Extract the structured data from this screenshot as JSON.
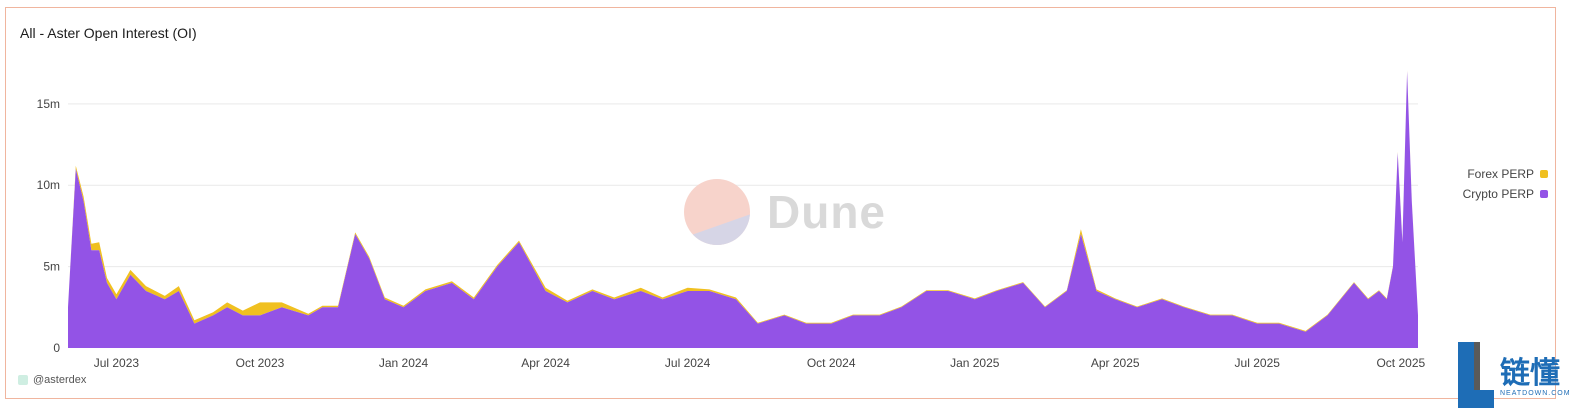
{
  "title": "All - Aster Open Interest (OI)",
  "attribution": "@asterdex",
  "watermark": "Dune",
  "corner_logo": {
    "cn": "链懂",
    "en": "NEATDOWN.COM"
  },
  "colors": {
    "forex": "#f0c020",
    "crypto": "#9353e6",
    "grid": "#e9e9e9",
    "axis_text": "#444444"
  },
  "legend": [
    {
      "name": "Forex PERP",
      "color": "#f0c020"
    },
    {
      "name": "Crypto PERP",
      "color": "#9353e6"
    }
  ],
  "chart_data": {
    "type": "area",
    "stacked": true,
    "title": "All - Aster Open Interest (OI)",
    "xlabel": "",
    "ylabel": "",
    "ylim": [
      0,
      18000000
    ],
    "yticks": [
      0,
      5000000,
      10000000,
      15000000
    ],
    "ytick_labels": [
      "0",
      "5m",
      "10m",
      "15m"
    ],
    "xlim": [
      "2023-05-31",
      "2025-10-12"
    ],
    "xticks": [
      "2023-07-01",
      "2023-10-01",
      "2024-01-01",
      "2024-04-01",
      "2024-07-01",
      "2024-10-01",
      "2025-01-01",
      "2025-04-01",
      "2025-07-01",
      "2025-10-01"
    ],
    "xtick_labels": [
      "Jul 2023",
      "Oct 2023",
      "Jan 2024",
      "Apr 2024",
      "Jul 2024",
      "Oct 2024",
      "Jan 2025",
      "Apr 2025",
      "Jul 2025",
      "Oct 2025"
    ],
    "grid": true,
    "legend_position": "right",
    "x": [
      "2023-05-31",
      "2023-06-05",
      "2023-06-10",
      "2023-06-15",
      "2023-06-20",
      "2023-06-25",
      "2023-07-01",
      "2023-07-10",
      "2023-07-20",
      "2023-08-01",
      "2023-08-10",
      "2023-08-20",
      "2023-09-01",
      "2023-09-10",
      "2023-09-20",
      "2023-10-01",
      "2023-10-15",
      "2023-11-01",
      "2023-11-10",
      "2023-11-20",
      "2023-12-01",
      "2023-12-10",
      "2023-12-20",
      "2024-01-01",
      "2024-01-15",
      "2024-02-01",
      "2024-02-15",
      "2024-03-01",
      "2024-03-15",
      "2024-04-01",
      "2024-04-15",
      "2024-05-01",
      "2024-05-15",
      "2024-06-01",
      "2024-06-15",
      "2024-07-01",
      "2024-07-15",
      "2024-08-01",
      "2024-08-15",
      "2024-09-01",
      "2024-09-15",
      "2024-10-01",
      "2024-10-15",
      "2024-11-01",
      "2024-11-15",
      "2024-12-01",
      "2024-12-15",
      "2025-01-01",
      "2025-01-15",
      "2025-02-01",
      "2025-02-15",
      "2025-03-01",
      "2025-03-10",
      "2025-03-20",
      "2025-04-01",
      "2025-04-15",
      "2025-05-01",
      "2025-05-15",
      "2025-06-01",
      "2025-06-15",
      "2025-07-01",
      "2025-07-15",
      "2025-08-01",
      "2025-08-15",
      "2025-09-01",
      "2025-09-10",
      "2025-09-17",
      "2025-09-22",
      "2025-09-26",
      "2025-09-29",
      "2025-10-02",
      "2025-10-05",
      "2025-10-08",
      "2025-10-12"
    ],
    "series": [
      {
        "name": "Crypto PERP",
        "values": [
          2.5,
          11.0,
          9.0,
          6.0,
          6.0,
          4.0,
          3.0,
          4.5,
          3.5,
          3.0,
          3.5,
          1.5,
          2.0,
          2.5,
          2.0,
          2.0,
          2.5,
          2.0,
          2.5,
          2.5,
          7.0,
          5.5,
          3.0,
          2.5,
          3.5,
          4.0,
          3.0,
          5.0,
          6.5,
          3.5,
          2.8,
          3.5,
          3.0,
          3.5,
          3.0,
          3.5,
          3.5,
          3.0,
          1.5,
          2.0,
          1.5,
          1.5,
          2.0,
          2.0,
          2.5,
          3.5,
          3.5,
          3.0,
          3.5,
          4.0,
          2.5,
          3.5,
          7.0,
          3.5,
          3.0,
          2.5,
          3.0,
          2.5,
          2.0,
          2.0,
          1.5,
          1.5,
          1.0,
          2.0,
          4.0,
          3.0,
          3.5,
          3.0,
          5.0,
          12.0,
          6.5,
          17.0,
          9.0,
          2.0
        ]
      },
      {
        "name": "Forex PERP",
        "values": [
          0,
          0.2,
          0.3,
          0.4,
          0.5,
          0.3,
          0.3,
          0.3,
          0.3,
          0.2,
          0.3,
          0.2,
          0.2,
          0.3,
          0.3,
          0.8,
          0.3,
          0.1,
          0.1,
          0.1,
          0.1,
          0.1,
          0.1,
          0.1,
          0.1,
          0.1,
          0.1,
          0.1,
          0.1,
          0.2,
          0.1,
          0.1,
          0.1,
          0.2,
          0.1,
          0.2,
          0.1,
          0.1,
          0.05,
          0.05,
          0.05,
          0.05,
          0.05,
          0.05,
          0.05,
          0.05,
          0.05,
          0.05,
          0.05,
          0.05,
          0.05,
          0.05,
          0.3,
          0.1,
          0.05,
          0.05,
          0.05,
          0.05,
          0.05,
          0.05,
          0.05,
          0.05,
          0.05,
          0.05,
          0.05,
          0.05,
          0.05,
          0.05,
          0.05,
          0.05,
          0.05,
          0.05,
          0.05,
          0
        ]
      }
    ]
  }
}
